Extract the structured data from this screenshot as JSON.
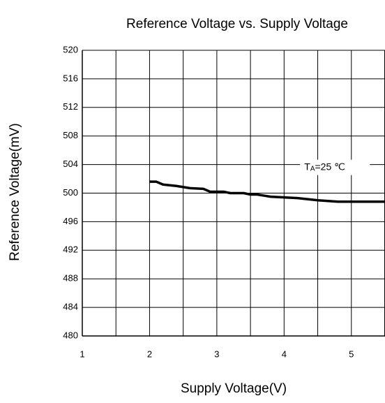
{
  "chart_data": {
    "type": "line",
    "title": "Reference Voltage vs. Supply Voltage",
    "x_label": "Supply Voltage(V)",
    "y_label": "Reference Voltage(mV)",
    "annotation": {
      "text": "T",
      "subscript": "A",
      "rest": "=25 ℃",
      "x": 4.3,
      "y": 503.6
    },
    "x": [
      2.0,
      2.1,
      2.2,
      2.4,
      2.6,
      2.8,
      2.9,
      3.1,
      3.2,
      3.4,
      3.5,
      3.6,
      3.8,
      4.0,
      4.2,
      4.5,
      4.8,
      5.5
    ],
    "series": [
      {
        "color": "#000000",
        "values": [
          501.6,
          501.6,
          501.2,
          501.0,
          500.7,
          500.6,
          500.2,
          500.2,
          500.0,
          500.0,
          499.8,
          499.8,
          499.5,
          499.4,
          499.3,
          499.0,
          498.8,
          498.8
        ]
      }
    ],
    "xlim": [
      1,
      5.5
    ],
    "xticks": [
      1,
      2,
      3,
      4,
      5
    ],
    "x_minor_grid": [
      1.5,
      2.5,
      3.5,
      4.5,
      5.5
    ],
    "ylim": [
      480,
      520
    ],
    "yticks": [
      480,
      484,
      488,
      492,
      496,
      500,
      504,
      508,
      512,
      516,
      520
    ],
    "grid": true
  }
}
